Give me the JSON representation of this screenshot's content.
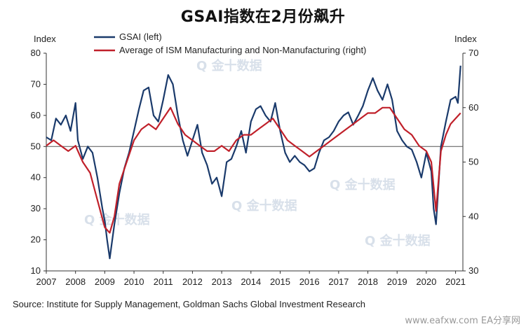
{
  "title": "GSAI指数在2月份飙升",
  "source": "Source: Institute for Supply Management, Goldman Sachs Global Investment Research",
  "footer": "www.eafxw.com  EA分享网",
  "watermark": "金十数据",
  "chart_data": {
    "type": "line",
    "left_axis": {
      "label": "Index",
      "range": [
        10,
        80
      ],
      "ticks": [
        10,
        20,
        30,
        40,
        50,
        60,
        70,
        80
      ]
    },
    "right_axis": {
      "label": "Index",
      "range": [
        30,
        70
      ],
      "ticks": [
        30,
        40,
        50,
        60,
        70
      ]
    },
    "x_axis": {
      "range": [
        2007,
        2021.25
      ],
      "ticks": [
        "2007",
        "2008",
        "2009",
        "2010",
        "2011",
        "2012",
        "2013",
        "2014",
        "2015",
        "2016",
        "2017",
        "2018",
        "2019",
        "2020",
        "2021"
      ]
    },
    "reference_line": {
      "axis": "left",
      "value": 50
    },
    "grid": false,
    "legend_position": "top-left",
    "series": [
      {
        "name": "GSAI (left)",
        "axis": "left",
        "color": "#1a3a6b",
        "x": [
          2007.0,
          2007.17,
          2007.33,
          2007.5,
          2007.67,
          2007.83,
          2008.0,
          2008.08,
          2008.25,
          2008.42,
          2008.58,
          2008.75,
          2008.92,
          2009.0,
          2009.08,
          2009.17,
          2009.33,
          2009.5,
          2009.67,
          2009.83,
          2010.0,
          2010.17,
          2010.33,
          2010.5,
          2010.67,
          2010.83,
          2011.0,
          2011.17,
          2011.33,
          2011.5,
          2011.67,
          2011.83,
          2012.0,
          2012.17,
          2012.33,
          2012.5,
          2012.67,
          2012.83,
          2013.0,
          2013.17,
          2013.33,
          2013.5,
          2013.67,
          2013.83,
          2014.0,
          2014.17,
          2014.33,
          2014.5,
          2014.67,
          2014.83,
          2015.0,
          2015.17,
          2015.33,
          2015.5,
          2015.67,
          2015.83,
          2016.0,
          2016.17,
          2016.33,
          2016.5,
          2016.67,
          2016.83,
          2017.0,
          2017.17,
          2017.33,
          2017.5,
          2017.67,
          2017.83,
          2018.0,
          2018.17,
          2018.33,
          2018.5,
          2018.67,
          2018.83,
          2019.0,
          2019.17,
          2019.33,
          2019.5,
          2019.67,
          2019.83,
          2020.0,
          2020.17,
          2020.25,
          2020.33,
          2020.5,
          2020.67,
          2020.83,
          2021.0,
          2021.08,
          2021.17
        ],
        "values": [
          53,
          52,
          59,
          57,
          60,
          55,
          64,
          52,
          46,
          50,
          48,
          40,
          30,
          26,
          20,
          14,
          25,
          35,
          43,
          48,
          55,
          62,
          68,
          69,
          60,
          58,
          65,
          73,
          70,
          60,
          52,
          47,
          52,
          57,
          48,
          44,
          38,
          40,
          34,
          45,
          46,
          50,
          55,
          48,
          58,
          62,
          63,
          60,
          58,
          64,
          55,
          48,
          45,
          47,
          45,
          44,
          42,
          43,
          48,
          52,
          53,
          55,
          58,
          60,
          61,
          57,
          60,
          63,
          68,
          72,
          68,
          65,
          70,
          65,
          55,
          52,
          50,
          49,
          45,
          40,
          48,
          42,
          30,
          25,
          50,
          58,
          65,
          66,
          64,
          76
        ]
      },
      {
        "name": "Average of ISM Manufacturing and Non-Manufacturing (right)",
        "axis": "right",
        "color": "#c0202a",
        "x": [
          2007.0,
          2007.25,
          2007.5,
          2007.75,
          2008.0,
          2008.25,
          2008.5,
          2008.75,
          2009.0,
          2009.17,
          2009.33,
          2009.5,
          2009.75,
          2010.0,
          2010.25,
          2010.5,
          2010.75,
          2011.0,
          2011.25,
          2011.5,
          2011.75,
          2012.0,
          2012.25,
          2012.5,
          2012.75,
          2013.0,
          2013.25,
          2013.5,
          2013.75,
          2014.0,
          2014.25,
          2014.5,
          2014.75,
          2015.0,
          2015.25,
          2015.5,
          2015.75,
          2016.0,
          2016.25,
          2016.5,
          2016.75,
          2017.0,
          2017.25,
          2017.5,
          2017.75,
          2018.0,
          2018.25,
          2018.5,
          2018.75,
          2019.0,
          2019.25,
          2019.5,
          2019.75,
          2020.0,
          2020.17,
          2020.33,
          2020.5,
          2020.67,
          2020.83,
          2021.0,
          2021.17
        ],
        "values": [
          53,
          54,
          53,
          52,
          53,
          50,
          48,
          43,
          38,
          37,
          40,
          46,
          50,
          54,
          56,
          57,
          56,
          58,
          60,
          57,
          55,
          54,
          53,
          52,
          52,
          53,
          52,
          54,
          55,
          55,
          56,
          57,
          58,
          56,
          54,
          53,
          52,
          51,
          52,
          53,
          54,
          55,
          56,
          57,
          58,
          59,
          59,
          60,
          60,
          58,
          56,
          55,
          53,
          52,
          50,
          41,
          52,
          55,
          57,
          58,
          59
        ]
      }
    ]
  }
}
